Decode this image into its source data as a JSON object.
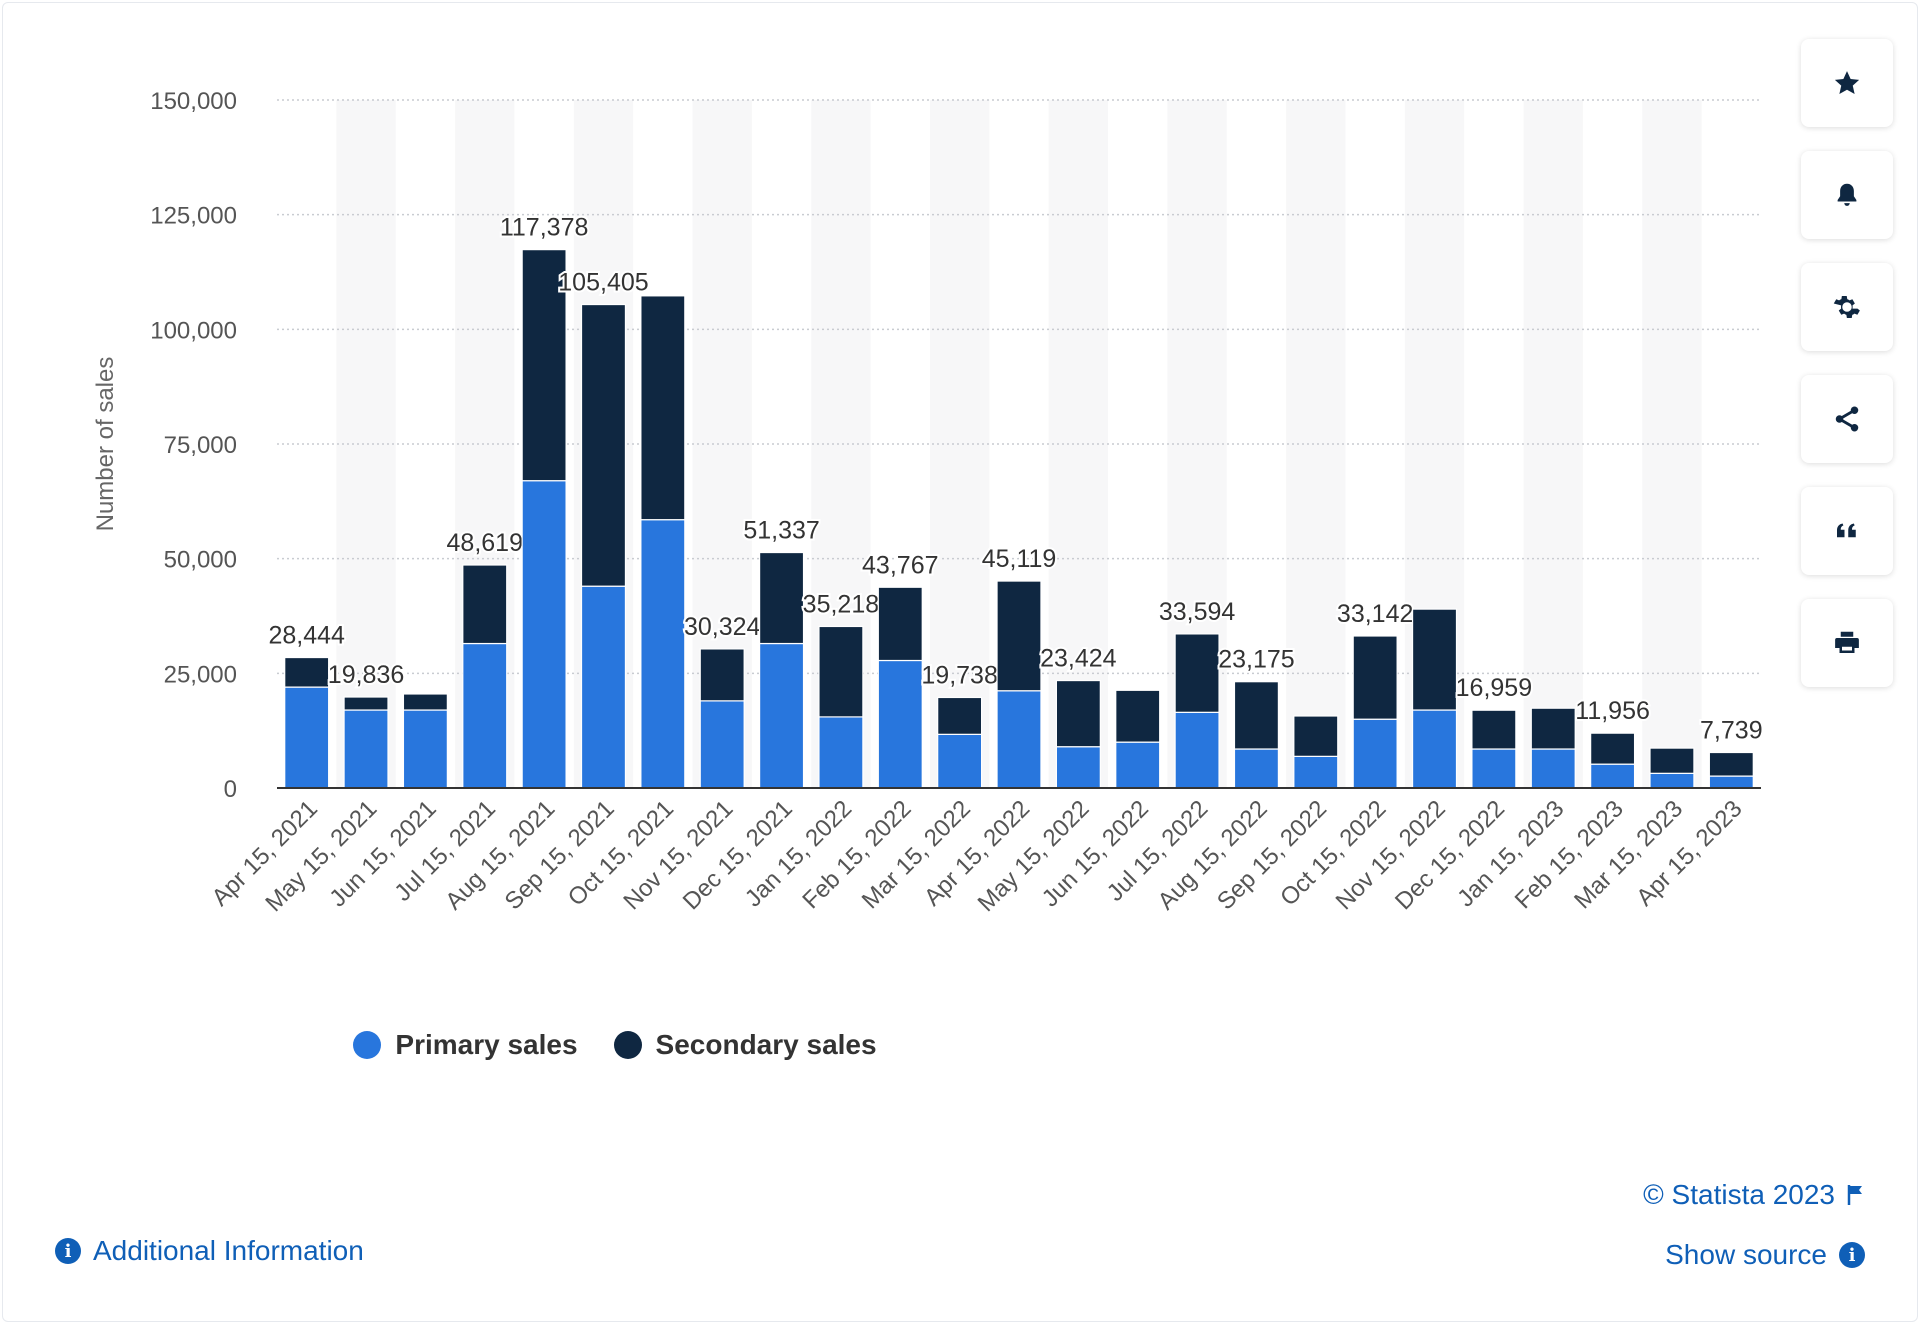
{
  "chart_data": {
    "type": "bar",
    "stacked": true,
    "categories": [
      "Apr 15, 2021",
      "May 15, 2021",
      "Jun 15, 2021",
      "Jul 15, 2021",
      "Aug 15, 2021",
      "Sep 15, 2021",
      "Oct 15, 2021",
      "Nov 15, 2021",
      "Dec 15, 2021",
      "Jan 15, 2022",
      "Feb 15, 2022",
      "Mar 15, 2022",
      "Apr 15, 2022",
      "May 15, 2022",
      "Jun 15, 2022",
      "Jul 15, 2022",
      "Aug 15, 2022",
      "Sep 15, 2022",
      "Oct 15, 2022",
      "Nov 15, 2022",
      "Dec 15, 2022",
      "Jan 15, 2023",
      "Feb 15, 2023",
      "Mar 15, 2023",
      "Apr 15, 2023"
    ],
    "series": [
      {
        "name": "Primary sales",
        "color": "#2876dd",
        "values": [
          22000,
          17000,
          17000,
          31500,
          67000,
          44000,
          58500,
          19000,
          31500,
          15500,
          27800,
          11700,
          21200,
          9000,
          10000,
          16500,
          8500,
          6900,
          15000,
          17000,
          8500,
          8500,
          5200,
          3200,
          2600
        ]
      },
      {
        "name": "Secondary sales",
        "color": "#0f2741",
        "values": [
          6444,
          2836,
          3500,
          17119,
          50378,
          61405,
          48800,
          11324,
          19837,
          19718,
          15967,
          8038,
          23919,
          14424,
          11300,
          17094,
          14675,
          8800,
          18142,
          22000,
          8459,
          8900,
          6756,
          5500,
          5139
        ]
      }
    ],
    "totals_labels": [
      "28,444",
      "19,836",
      "",
      "48,619",
      "117,378",
      "105,405",
      "",
      "30,324",
      "51,337",
      "35,218",
      "43,767",
      "19,738",
      "45,119",
      "23,424",
      "",
      "33,594",
      "23,175",
      "",
      "33,142",
      "",
      "16,959",
      "",
      "11,956",
      "",
      "7,739"
    ],
    "ylabel": "Number of sales",
    "yticks": [
      "0",
      "25,000",
      "50,000",
      "75,000",
      "100,000",
      "125,000",
      "150,000"
    ],
    "ylim": [
      0,
      150000
    ],
    "grid": true,
    "legend_position": "bottom"
  },
  "legend": {
    "primary_label": "Primary sales",
    "secondary_label": "Secondary sales"
  },
  "toolbar": {
    "icons": [
      "star-icon",
      "bell-icon",
      "gear-icon",
      "share-icon",
      "quote-icon",
      "print-icon"
    ]
  },
  "footer": {
    "additional_info": "Additional Information",
    "copyright": "© Statista 2023",
    "show_source": "Show source",
    "info_glyph": "i"
  }
}
